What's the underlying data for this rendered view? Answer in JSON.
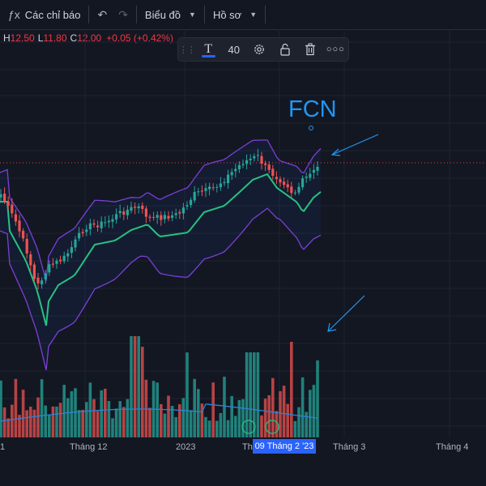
{
  "toolbar": {
    "indicators_label": "Các chỉ báo",
    "chart_type_label": "Biểu đồ",
    "profile_label": "Hồ sơ"
  },
  "ohlc": {
    "h_key": "H",
    "h_val": "12.50",
    "l_key": "L",
    "l_val": "11.80",
    "c_key": "C",
    "c_val": "12.00",
    "change": "+0.05 (+0.42%)"
  },
  "drawing_toolbar": {
    "font_size": "40"
  },
  "annotation": {
    "text": "FCN"
  },
  "x_axis": {
    "labels": [
      "1",
      "Tháng 12",
      "2023",
      "Thá",
      "Tháng 3",
      "Tháng 4"
    ],
    "crosshair_label": "09 Tháng 2 '23"
  },
  "colors": {
    "up": "#26a69a",
    "down": "#ef5350",
    "ma": "#26c281",
    "bands": "#7b3fd8",
    "volume_ma": "#2e82d6",
    "annotation": "#2196f3"
  },
  "chart_data": {
    "type": "candlestick",
    "ohlc_last": {
      "high": 12.5,
      "low": 11.8,
      "close": 12.0,
      "change": 0.05,
      "change_pct": 0.42
    },
    "indicators": [
      "Bollinger Bands",
      "Volume",
      "Volume MA"
    ],
    "x_labels": [
      "1",
      "Tháng 12",
      "2023",
      "Thá",
      "Tháng 3",
      "Tháng 4"
    ],
    "annotation": "FCN"
  }
}
